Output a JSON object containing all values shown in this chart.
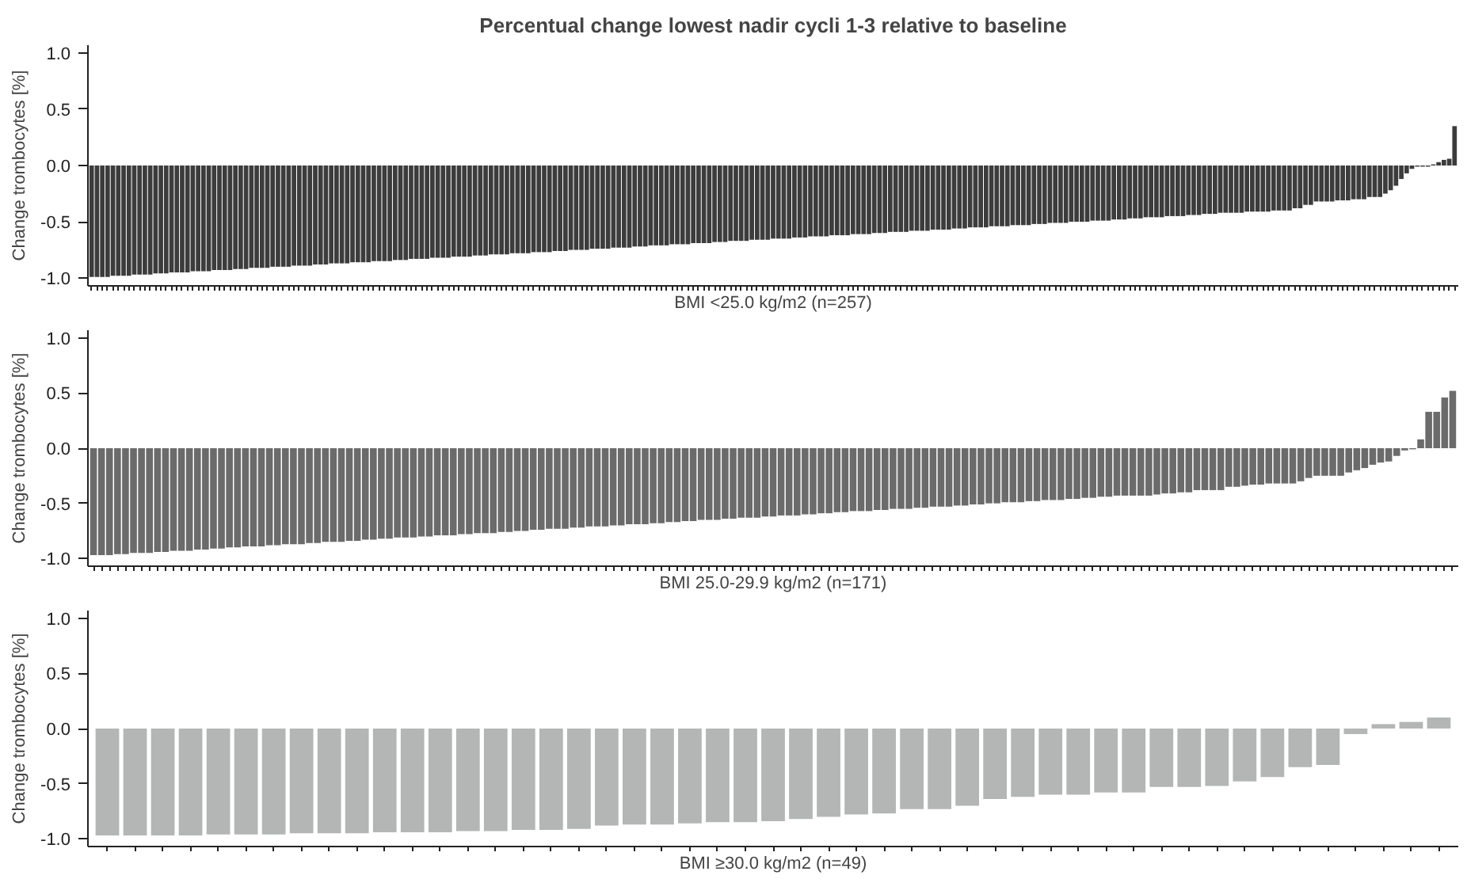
{
  "chart_data": [
    {
      "type": "bar",
      "title": "Percentual change lowest nadir cycli 1-3 relative to baseline",
      "xlabel": "BMI <25.0 kg/m2 (n=257)",
      "ylabel": "Change trombocytes [%]",
      "color": "#3c3c3c",
      "grid": false,
      "ylim": [
        -1.07,
        1.07
      ],
      "yticks": [
        {
          "value": -1,
          "label": "-1.0"
        },
        {
          "value": -0.5,
          "label": "-0.5"
        },
        {
          "value": 0,
          "label": "0.0"
        },
        {
          "value": 0.5,
          "label": "0.5"
        },
        {
          "value": 1,
          "label": "1.0"
        }
      ],
      "categories": [
        null,
        null,
        null,
        null,
        null,
        null,
        null,
        null,
        null,
        null,
        null,
        null,
        null,
        null,
        null,
        null,
        null,
        null,
        null,
        null,
        null,
        null,
        null,
        null,
        null,
        null,
        null,
        null,
        null,
        null,
        null,
        null,
        null,
        null,
        null,
        null,
        null,
        null,
        null,
        null,
        null,
        null,
        null,
        null,
        null,
        null,
        null,
        null,
        null,
        null,
        null,
        null,
        null,
        null,
        null,
        null,
        null,
        null,
        null,
        null,
        null,
        null,
        null,
        null,
        null,
        null,
        null,
        null,
        null,
        null,
        null,
        null,
        null,
        null,
        null,
        null,
        null,
        null,
        null,
        null,
        null,
        null,
        null,
        null,
        null,
        null,
        null,
        null,
        null,
        null,
        null,
        null,
        null,
        null,
        null,
        null,
        null,
        null,
        null,
        null,
        null,
        null,
        null,
        null,
        null,
        null,
        null,
        null,
        null,
        null,
        null,
        null,
        null,
        null,
        null,
        null,
        null,
        null,
        null,
        null,
        null,
        null,
        null,
        null,
        null,
        null,
        null,
        null,
        null,
        null,
        null,
        null,
        null,
        null,
        null,
        null,
        null,
        null,
        null,
        null,
        null,
        null,
        null,
        null,
        null,
        null,
        null,
        null,
        null,
        null,
        null,
        null,
        null,
        null,
        null,
        null,
        null,
        null,
        null,
        null,
        null,
        null,
        null,
        null,
        null,
        null,
        null,
        null,
        null,
        null,
        null,
        null,
        null,
        null,
        null,
        null,
        null,
        null,
        null,
        null,
        null,
        null,
        null,
        null,
        null,
        null,
        null,
        null,
        null,
        null,
        null,
        null,
        null,
        null,
        null,
        null,
        null,
        null,
        null,
        null,
        null,
        null,
        null,
        null,
        null,
        null,
        null,
        null,
        null,
        null,
        null,
        null,
        null,
        null,
        null,
        null,
        null,
        null,
        null,
        null,
        null,
        null,
        null,
        null,
        null,
        null,
        null,
        null,
        null,
        null,
        null,
        null,
        null,
        null,
        null,
        null,
        null,
        null,
        null,
        null,
        null,
        null,
        null,
        null,
        null,
        null,
        null,
        null,
        null,
        null,
        null,
        null,
        null,
        null,
        null,
        null,
        null
      ],
      "values": [
        -0.99,
        -0.99,
        -0.99,
        -0.99,
        -0.98,
        -0.98,
        -0.98,
        -0.98,
        -0.97,
        -0.97,
        -0.97,
        -0.97,
        -0.96,
        -0.96,
        -0.96,
        -0.95,
        -0.95,
        -0.95,
        -0.95,
        -0.94,
        -0.94,
        -0.94,
        -0.94,
        -0.93,
        -0.93,
        -0.93,
        -0.93,
        -0.92,
        -0.92,
        -0.92,
        -0.91,
        -0.91,
        -0.91,
        -0.91,
        -0.9,
        -0.9,
        -0.9,
        -0.9,
        -0.89,
        -0.89,
        -0.89,
        -0.89,
        -0.88,
        -0.88,
        -0.88,
        -0.87,
        -0.87,
        -0.87,
        -0.87,
        -0.86,
        -0.86,
        -0.86,
        -0.86,
        -0.85,
        -0.85,
        -0.85,
        -0.85,
        -0.84,
        -0.84,
        -0.84,
        -0.83,
        -0.83,
        -0.83,
        -0.83,
        -0.82,
        -0.82,
        -0.82,
        -0.82,
        -0.81,
        -0.81,
        -0.81,
        -0.81,
        -0.8,
        -0.8,
        -0.8,
        -0.79,
        -0.79,
        -0.79,
        -0.79,
        -0.78,
        -0.78,
        -0.78,
        -0.78,
        -0.77,
        -0.77,
        -0.77,
        -0.77,
        -0.76,
        -0.76,
        -0.76,
        -0.75,
        -0.75,
        -0.75,
        -0.75,
        -0.74,
        -0.74,
        -0.74,
        -0.74,
        -0.73,
        -0.73,
        -0.73,
        -0.73,
        -0.72,
        -0.72,
        -0.72,
        -0.71,
        -0.71,
        -0.71,
        -0.71,
        -0.7,
        -0.7,
        -0.7,
        -0.7,
        -0.69,
        -0.69,
        -0.69,
        -0.69,
        -0.68,
        -0.68,
        -0.68,
        -0.67,
        -0.67,
        -0.67,
        -0.67,
        -0.66,
        -0.66,
        -0.66,
        -0.66,
        -0.65,
        -0.65,
        -0.65,
        -0.65,
        -0.64,
        -0.64,
        -0.64,
        -0.63,
        -0.63,
        -0.63,
        -0.63,
        -0.62,
        -0.62,
        -0.62,
        -0.62,
        -0.61,
        -0.61,
        -0.61,
        -0.61,
        -0.6,
        -0.6,
        -0.6,
        -0.59,
        -0.59,
        -0.59,
        -0.59,
        -0.58,
        -0.58,
        -0.58,
        -0.58,
        -0.57,
        -0.57,
        -0.57,
        -0.57,
        -0.56,
        -0.56,
        -0.56,
        -0.55,
        -0.55,
        -0.55,
        -0.55,
        -0.54,
        -0.54,
        -0.54,
        -0.54,
        -0.53,
        -0.53,
        -0.53,
        -0.53,
        -0.52,
        -0.52,
        -0.52,
        -0.51,
        -0.51,
        -0.51,
        -0.51,
        -0.5,
        -0.5,
        -0.5,
        -0.5,
        -0.49,
        -0.49,
        -0.49,
        -0.49,
        -0.48,
        -0.48,
        -0.48,
        -0.47,
        -0.47,
        -0.47,
        -0.46,
        -0.46,
        -0.46,
        -0.46,
        -0.45,
        -0.45,
        -0.45,
        -0.45,
        -0.44,
        -0.44,
        -0.44,
        -0.43,
        -0.43,
        -0.43,
        -0.42,
        -0.42,
        -0.42,
        -0.42,
        -0.42,
        -0.41,
        -0.41,
        -0.41,
        -0.41,
        -0.41,
        -0.4,
        -0.4,
        -0.4,
        -0.4,
        -0.38,
        -0.38,
        -0.35,
        -0.35,
        -0.32,
        -0.32,
        -0.32,
        -0.32,
        -0.31,
        -0.31,
        -0.31,
        -0.3,
        -0.3,
        -0.3,
        -0.28,
        -0.28,
        -0.28,
        -0.25,
        -0.22,
        -0.18,
        -0.12,
        -0.07,
        -0.03,
        -0.01,
        -0.01,
        -0.01,
        0.01,
        0.03,
        0.05,
        0.06,
        0.35
      ]
    },
    {
      "type": "bar",
      "xlabel": "BMI 25.0-29.9 kg/m2 (n=171)",
      "ylabel": "Change trombocytes [%]",
      "color": "#6b6b6b",
      "grid": false,
      "ylim": [
        -1.07,
        1.07
      ],
      "yticks": [
        {
          "value": -1,
          "label": "-1.0"
        },
        {
          "value": -0.5,
          "label": "-0.5"
        },
        {
          "value": 0,
          "label": "0.0"
        },
        {
          "value": 0.5,
          "label": "0.5"
        },
        {
          "value": 1,
          "label": "1.0"
        }
      ],
      "categories": [
        null,
        null,
        null,
        null,
        null,
        null,
        null,
        null,
        null,
        null,
        null,
        null,
        null,
        null,
        null,
        null,
        null,
        null,
        null,
        null,
        null,
        null,
        null,
        null,
        null,
        null,
        null,
        null,
        null,
        null,
        null,
        null,
        null,
        null,
        null,
        null,
        null,
        null,
        null,
        null,
        null,
        null,
        null,
        null,
        null,
        null,
        null,
        null,
        null,
        null,
        null,
        null,
        null,
        null,
        null,
        null,
        null,
        null,
        null,
        null,
        null,
        null,
        null,
        null,
        null,
        null,
        null,
        null,
        null,
        null,
        null,
        null,
        null,
        null,
        null,
        null,
        null,
        null,
        null,
        null,
        null,
        null,
        null,
        null,
        null,
        null,
        null,
        null,
        null,
        null,
        null,
        null,
        null,
        null,
        null,
        null,
        null,
        null,
        null,
        null,
        null,
        null,
        null,
        null,
        null,
        null,
        null,
        null,
        null,
        null,
        null,
        null,
        null,
        null,
        null,
        null,
        null,
        null,
        null,
        null,
        null,
        null,
        null,
        null,
        null,
        null,
        null,
        null,
        null,
        null,
        null,
        null,
        null,
        null,
        null,
        null,
        null,
        null,
        null,
        null,
        null,
        null,
        null,
        null,
        null,
        null,
        null,
        null,
        null,
        null,
        null,
        null,
        null,
        null,
        null,
        null,
        null,
        null,
        null,
        null,
        null,
        null,
        null,
        null,
        null,
        null,
        null,
        null,
        null,
        null,
        null
      ],
      "values": [
        -0.97,
        -0.97,
        -0.97,
        -0.96,
        -0.96,
        -0.95,
        -0.95,
        -0.95,
        -0.94,
        -0.94,
        -0.93,
        -0.93,
        -0.93,
        -0.92,
        -0.92,
        -0.91,
        -0.91,
        -0.9,
        -0.9,
        -0.89,
        -0.89,
        -0.89,
        -0.88,
        -0.88,
        -0.87,
        -0.87,
        -0.87,
        -0.86,
        -0.86,
        -0.85,
        -0.85,
        -0.85,
        -0.84,
        -0.84,
        -0.83,
        -0.83,
        -0.82,
        -0.82,
        -0.81,
        -0.81,
        -0.81,
        -0.8,
        -0.8,
        -0.79,
        -0.79,
        -0.79,
        -0.78,
        -0.78,
        -0.77,
        -0.77,
        -0.77,
        -0.76,
        -0.76,
        -0.75,
        -0.75,
        -0.74,
        -0.74,
        -0.73,
        -0.73,
        -0.73,
        -0.72,
        -0.72,
        -0.71,
        -0.71,
        -0.71,
        -0.7,
        -0.7,
        -0.69,
        -0.69,
        -0.69,
        -0.68,
        -0.68,
        -0.67,
        -0.67,
        -0.66,
        -0.66,
        -0.65,
        -0.65,
        -0.65,
        -0.64,
        -0.64,
        -0.63,
        -0.63,
        -0.63,
        -0.62,
        -0.62,
        -0.61,
        -0.61,
        -0.61,
        -0.6,
        -0.6,
        -0.59,
        -0.59,
        -0.58,
        -0.58,
        -0.57,
        -0.57,
        -0.57,
        -0.56,
        -0.56,
        -0.55,
        -0.55,
        -0.55,
        -0.54,
        -0.54,
        -0.53,
        -0.53,
        -0.53,
        -0.52,
        -0.52,
        -0.51,
        -0.51,
        -0.5,
        -0.5,
        -0.49,
        -0.49,
        -0.49,
        -0.48,
        -0.48,
        -0.47,
        -0.47,
        -0.47,
        -0.46,
        -0.46,
        -0.45,
        -0.45,
        -0.44,
        -0.44,
        -0.43,
        -0.43,
        -0.43,
        -0.43,
        -0.43,
        -0.42,
        -0.41,
        -0.41,
        -0.4,
        -0.4,
        -0.38,
        -0.38,
        -0.38,
        -0.38,
        -0.35,
        -0.35,
        -0.34,
        -0.33,
        -0.33,
        -0.32,
        -0.32,
        -0.32,
        -0.32,
        -0.3,
        -0.27,
        -0.25,
        -0.25,
        -0.25,
        -0.25,
        -0.22,
        -0.2,
        -0.18,
        -0.15,
        -0.13,
        -0.12,
        -0.07,
        -0.02,
        -0.01,
        0.08,
        0.33,
        0.33,
        0.46,
        0.52
      ]
    },
    {
      "type": "bar",
      "xlabel": "BMI ≥30.0 kg/m2 (n=49)",
      "ylabel": "Change trombocytes [%]",
      "color": "#b4b6b6",
      "grid": false,
      "ylim": [
        -1.07,
        1.07
      ],
      "yticks": [
        {
          "value": -1,
          "label": "-1.0"
        },
        {
          "value": -0.5,
          "label": "-0.5"
        },
        {
          "value": 0,
          "label": "0.0"
        },
        {
          "value": 0.5,
          "label": "0.5"
        },
        {
          "value": 1,
          "label": "1.0"
        }
      ],
      "categories": [
        null,
        null,
        null,
        null,
        null,
        null,
        null,
        null,
        null,
        null,
        null,
        null,
        null,
        null,
        null,
        null,
        null,
        null,
        null,
        null,
        null,
        null,
        null,
        null,
        null,
        null,
        null,
        null,
        null,
        null,
        null,
        null,
        null,
        null,
        null,
        null,
        null,
        null,
        null,
        null,
        null,
        null,
        null,
        null,
        null,
        null,
        null,
        null,
        null
      ],
      "values": [
        -0.97,
        -0.97,
        -0.97,
        -0.97,
        -0.96,
        -0.96,
        -0.96,
        -0.95,
        -0.95,
        -0.95,
        -0.94,
        -0.94,
        -0.94,
        -0.93,
        -0.93,
        -0.92,
        -0.92,
        -0.91,
        -0.88,
        -0.87,
        -0.87,
        -0.86,
        -0.85,
        -0.85,
        -0.84,
        -0.82,
        -0.8,
        -0.78,
        -0.77,
        -0.73,
        -0.73,
        -0.7,
        -0.64,
        -0.62,
        -0.6,
        -0.6,
        -0.58,
        -0.58,
        -0.53,
        -0.53,
        -0.52,
        -0.48,
        -0.44,
        -0.35,
        -0.33,
        -0.05,
        0.04,
        0.06,
        0.1
      ]
    }
  ]
}
